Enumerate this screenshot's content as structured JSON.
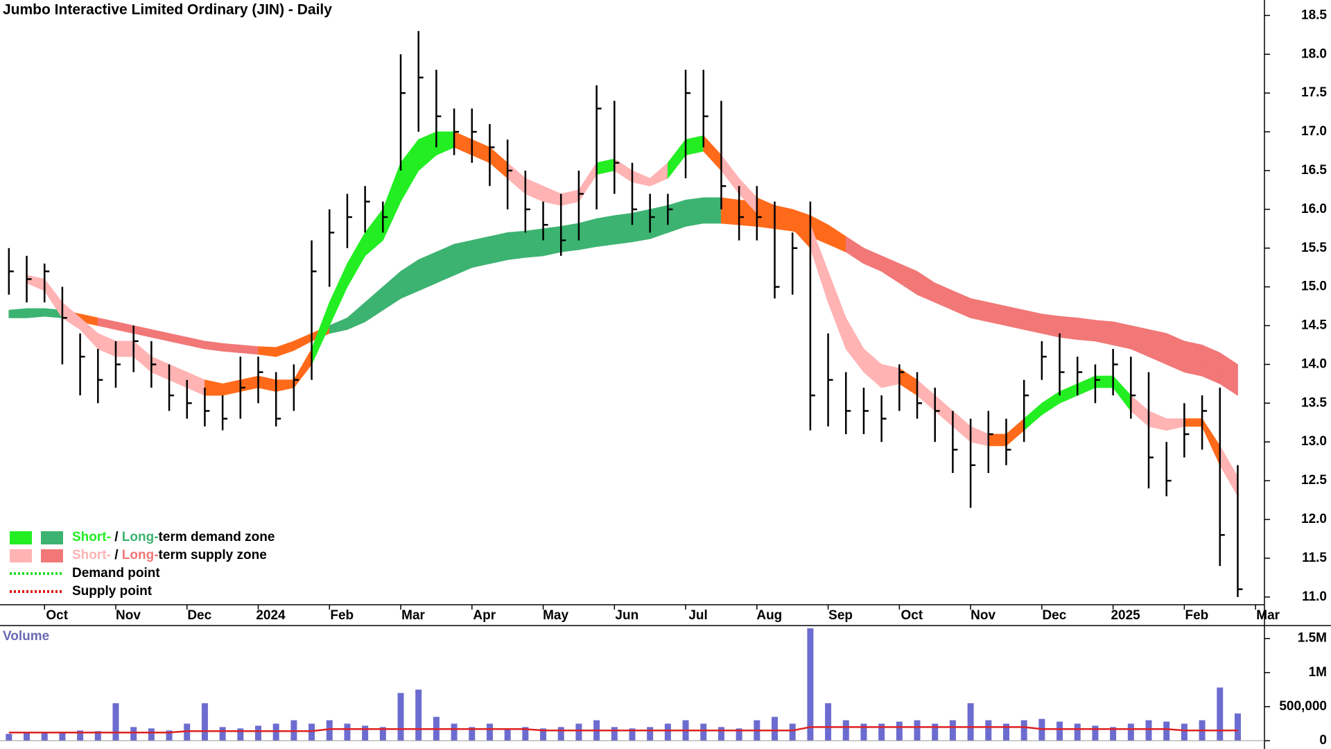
{
  "chart_data": {
    "type": "ohlc",
    "title": "Jumbo Interactive Limited Ordinary (JIN) - Daily",
    "categories": [
      null,
      null,
      "Oct",
      null,
      null,
      null,
      "Nov",
      null,
      null,
      null,
      "Dec",
      null,
      null,
      null,
      "2024",
      null,
      null,
      null,
      "Feb",
      null,
      null,
      null,
      "Mar",
      null,
      null,
      null,
      "Apr",
      null,
      null,
      null,
      "May",
      null,
      null,
      null,
      "Jun",
      null,
      null,
      null,
      "Jul",
      null,
      null,
      null,
      "Aug",
      null,
      null,
      null,
      "Sep",
      null,
      null,
      null,
      "Oct",
      null,
      null,
      null,
      "Nov",
      null,
      null,
      null,
      "Dec",
      null,
      null,
      null,
      "2025",
      null,
      null,
      null,
      "Feb",
      null,
      null,
      null,
      "Mar"
    ],
    "high": [
      15.5,
      15.4,
      15.3,
      15.0,
      14.4,
      14.2,
      14.3,
      14.5,
      14.3,
      14.0,
      13.8,
      13.7,
      13.6,
      14.1,
      14.1,
      13.9,
      14.0,
      15.6,
      16.0,
      16.2,
      16.3,
      16.1,
      18.0,
      18.3,
      17.8,
      17.3,
      17.3,
      17.1,
      16.9,
      16.5,
      16.1,
      16.2,
      16.5,
      17.6,
      17.4,
      16.6,
      16.2,
      16.2,
      17.8,
      17.8,
      17.4,
      16.3,
      16.3,
      16.1,
      15.7,
      16.1,
      14.4,
      13.9,
      13.7,
      13.6,
      14.0,
      13.9,
      13.7,
      13.4,
      13.3,
      13.4,
      13.3,
      13.8,
      14.3,
      14.4,
      14.1,
      14.0,
      14.2,
      14.1,
      13.9,
      13.0,
      13.5,
      13.6,
      13.7,
      12.7,
      null
    ],
    "low": [
      14.9,
      14.8,
      14.8,
      14.0,
      13.6,
      13.5,
      13.7,
      13.9,
      13.7,
      13.4,
      13.3,
      13.2,
      13.15,
      13.3,
      13.5,
      13.2,
      13.4,
      13.8,
      15.0,
      15.5,
      15.7,
      15.7,
      16.5,
      17.0,
      16.8,
      16.7,
      16.6,
      16.3,
      16.0,
      15.7,
      15.6,
      15.4,
      15.6,
      16.0,
      16.2,
      15.8,
      15.7,
      15.8,
      16.4,
      16.8,
      16.0,
      15.6,
      15.6,
      14.85,
      14.9,
      13.15,
      13.2,
      13.1,
      13.1,
      13.0,
      13.4,
      13.3,
      13.0,
      12.6,
      12.15,
      12.6,
      12.7,
      13.0,
      13.8,
      13.6,
      13.6,
      13.5,
      13.6,
      13.3,
      12.4,
      12.3,
      12.8,
      12.9,
      11.4,
      11.0,
      null
    ],
    "close": [
      15.2,
      15.1,
      15.2,
      14.6,
      14.1,
      13.8,
      14.0,
      14.3,
      14.0,
      13.6,
      13.5,
      13.4,
      13.3,
      13.7,
      13.9,
      13.3,
      13.8,
      15.2,
      15.7,
      15.9,
      16.1,
      15.9,
      17.5,
      17.7,
      17.2,
      17.0,
      17.0,
      16.8,
      16.5,
      16.0,
      15.8,
      15.6,
      16.2,
      17.3,
      16.6,
      16.0,
      15.9,
      16.0,
      17.5,
      17.2,
      16.3,
      15.9,
      15.9,
      15.0,
      15.5,
      13.6,
      13.8,
      13.4,
      13.4,
      13.3,
      13.9,
      13.5,
      13.4,
      12.9,
      12.7,
      13.1,
      12.9,
      13.6,
      14.1,
      13.9,
      13.9,
      13.8,
      14.0,
      13.6,
      12.8,
      12.5,
      13.1,
      13.4,
      11.8,
      11.1,
      null
    ],
    "color": "#000000",
    "ylim": [
      10.9,
      18.7
    ],
    "yticks": [
      {
        "value": 11,
        "label": "11.0"
      },
      11.5,
      {
        "value": 12,
        "label": "12.0"
      },
      12.5,
      {
        "value": 13,
        "label": "13.0"
      },
      13.5,
      {
        "value": 14,
        "label": "14.0"
      },
      14.5,
      {
        "value": 15,
        "label": "15.0"
      },
      15.5,
      {
        "value": 16,
        "label": "16.0"
      },
      16.5,
      {
        "value": 17,
        "label": "17.0"
      },
      17.5,
      {
        "value": 18,
        "label": "18.0"
      },
      18.5
    ],
    "short_zone": {
      "upper": [
        null,
        15.15,
        15.1,
        14.8,
        14.6,
        14.4,
        14.3,
        14.3,
        14.1,
        14.0,
        13.9,
        13.8,
        13.75,
        13.8,
        13.85,
        13.8,
        13.8,
        14.2,
        14.8,
        15.3,
        15.7,
        16.0,
        16.6,
        16.9,
        17.0,
        17.0,
        16.9,
        16.8,
        16.6,
        16.4,
        16.3,
        16.2,
        16.25,
        16.6,
        16.65,
        16.5,
        16.4,
        16.6,
        16.9,
        16.95,
        16.7,
        16.4,
        16.15,
        16.05,
        15.95,
        15.8,
        15.2,
        14.6,
        14.2,
        14.0,
        13.95,
        13.8,
        13.6,
        13.4,
        13.2,
        13.1,
        13.1,
        13.3,
        13.5,
        13.65,
        13.75,
        13.85,
        13.85,
        13.6,
        13.4,
        13.3,
        13.3,
        13.3,
        12.95,
        12.55,
        null
      ],
      "lower": [
        null,
        15.05,
        14.95,
        14.6,
        14.45,
        14.2,
        14.1,
        14.1,
        13.9,
        13.8,
        13.7,
        13.6,
        13.6,
        13.65,
        13.7,
        13.65,
        13.7,
        14.0,
        14.5,
        15.0,
        15.4,
        15.6,
        16.1,
        16.5,
        16.7,
        16.8,
        16.7,
        16.6,
        16.4,
        16.2,
        16.1,
        16.05,
        16.1,
        16.45,
        16.5,
        16.35,
        16.3,
        16.4,
        16.7,
        16.75,
        16.5,
        16.2,
        15.95,
        15.85,
        15.75,
        15.5,
        14.8,
        14.2,
        13.9,
        13.7,
        13.75,
        13.6,
        13.4,
        13.2,
        13.0,
        12.95,
        12.95,
        13.15,
        13.35,
        13.5,
        13.6,
        13.7,
        13.7,
        13.4,
        13.2,
        13.15,
        13.2,
        13.2,
        12.7,
        12.3,
        null
      ],
      "colors": [
        null,
        "#ffb3b3",
        "#ffb3b3",
        "#ffb3b3",
        "#ffb3b3",
        "#ffb3b3",
        "#ffb3b3",
        "#ffb3b3",
        "#ffb3b3",
        "#ffb3b3",
        "#ffb3b3",
        "#ff6a1a",
        "#ff6a1a",
        "#ff6a1a",
        "#ff6a1a",
        "#ff6a1a",
        "#ff6a1a",
        "#22ee22",
        "#22ee22",
        "#22ee22",
        "#22ee22",
        "#22ee22",
        "#22ee22",
        "#22ee22",
        "#22ee22",
        "#ff6a1a",
        "#ff6a1a",
        "#ff6a1a",
        "#ffb3b3",
        "#ffb3b3",
        "#ffb3b3",
        "#ffb3b3",
        "#ffb3b3",
        "#22ee22",
        "#ffb3b3",
        "#ffb3b3",
        "#ffb3b3",
        "#22ee22",
        "#22ee22",
        "#ff6a1a",
        "#ffb3b3",
        "#ffb3b3",
        "#ff6a1a",
        "#ff6a1a",
        "#ff6a1a",
        "#ffb3b3",
        "#ffb3b3",
        "#ffb3b3",
        "#ffb3b3",
        "#ffb3b3",
        "#ff6a1a",
        "#ffb3b3",
        "#ffb3b3",
        "#ffb3b3",
        "#ffb3b3",
        "#ff6a1a",
        "#ff6a1a",
        "#22ee22",
        "#22ee22",
        "#22ee22",
        "#22ee22",
        "#22ee22",
        "#22ee22",
        "#ffb3b3",
        "#ffb3b3",
        "#ffb3b3",
        "#ff6a1a",
        "#ff6a1a",
        "#ffb3b3",
        null,
        null
      ]
    },
    "long_zone": {
      "upper": [
        14.7,
        14.72,
        14.72,
        14.7,
        14.65,
        14.6,
        14.55,
        14.5,
        14.45,
        14.4,
        14.35,
        14.3,
        14.27,
        14.25,
        14.23,
        14.22,
        14.3,
        14.4,
        14.5,
        14.6,
        14.8,
        15.0,
        15.2,
        15.35,
        15.45,
        15.55,
        15.6,
        15.65,
        15.7,
        15.72,
        15.75,
        15.78,
        15.82,
        15.88,
        15.92,
        15.95,
        16.0,
        16.05,
        16.12,
        16.15,
        16.15,
        16.12,
        16.1,
        16.05,
        16.0,
        15.92,
        15.8,
        15.65,
        15.5,
        15.4,
        15.3,
        15.2,
        15.05,
        14.95,
        14.85,
        14.8,
        14.75,
        14.7,
        14.65,
        14.62,
        14.6,
        14.57,
        14.55,
        14.5,
        14.45,
        14.4,
        14.3,
        14.25,
        14.15,
        14.0,
        null
      ],
      "lower": [
        14.6,
        14.6,
        14.62,
        14.6,
        14.55,
        14.5,
        14.45,
        14.4,
        14.35,
        14.3,
        14.25,
        14.2,
        14.17,
        14.15,
        14.13,
        14.1,
        14.18,
        14.3,
        14.4,
        14.45,
        14.55,
        14.7,
        14.85,
        14.95,
        15.05,
        15.15,
        15.25,
        15.3,
        15.35,
        15.38,
        15.4,
        15.45,
        15.48,
        15.52,
        15.55,
        15.58,
        15.62,
        15.7,
        15.78,
        15.82,
        15.82,
        15.8,
        15.78,
        15.75,
        15.72,
        15.65,
        15.55,
        15.45,
        15.3,
        15.2,
        15.05,
        14.9,
        14.8,
        14.7,
        14.6,
        14.55,
        14.5,
        14.45,
        14.4,
        14.35,
        14.32,
        14.3,
        14.25,
        14.2,
        14.1,
        14.0,
        13.9,
        13.85,
        13.75,
        13.6,
        null
      ],
      "colors": [
        "#3cb371",
        "#3cb371",
        "#3cb371",
        "#ff6a1a",
        "#ff6a1a",
        "#f27777",
        "#f27777",
        "#f27777",
        "#f27777",
        "#f27777",
        "#f27777",
        "#f27777",
        "#f27777",
        "#f27777",
        "#ff6a1a",
        "#ff6a1a",
        "#ff6a1a",
        "#ff6a1a",
        "#3cb371",
        "#3cb371",
        "#3cb371",
        "#3cb371",
        "#3cb371",
        "#3cb371",
        "#3cb371",
        "#3cb371",
        "#3cb371",
        "#3cb371",
        "#3cb371",
        "#3cb371",
        "#3cb371",
        "#3cb371",
        "#3cb371",
        "#3cb371",
        "#3cb371",
        "#3cb371",
        "#3cb371",
        "#3cb371",
        "#3cb371",
        "#3cb371",
        "#ff6a1a",
        "#ff6a1a",
        "#ff6a1a",
        "#ff6a1a",
        "#ff6a1a",
        "#ff6a1a",
        "#ff6a1a",
        "#f27777",
        "#f27777",
        "#f27777",
        "#f27777",
        "#f27777",
        "#f27777",
        "#f27777",
        "#f27777",
        "#f27777",
        "#f27777",
        "#f27777",
        "#f27777",
        "#f27777",
        "#f27777",
        "#f27777",
        "#f27777",
        "#f27777",
        "#f27777",
        "#f27777",
        "#f27777",
        "#f27777",
        "#f27777",
        null,
        null
      ]
    },
    "legend": [
      {
        "swatches": [
          "#22ee22",
          "#3cb371"
        ],
        "parts": [
          {
            "text": "Short-",
            "color": "#22ee22"
          },
          {
            "text": " / "
          },
          {
            "text": "Long-",
            "color": "#3cb371"
          },
          {
            "text": "term demand zone"
          }
        ]
      },
      {
        "swatches": [
          "#ffb3b3",
          "#f27777"
        ],
        "parts": [
          {
            "text": "Short-",
            "color": "#ffb3b3"
          },
          {
            "text": " / "
          },
          {
            "text": "Long-",
            "color": "#f27777"
          },
          {
            "text": "term supply zone"
          }
        ]
      },
      {
        "line_color": "#22dd22",
        "parts": [
          {
            "text": "Demand point"
          }
        ]
      },
      {
        "line_color": "#dd1111",
        "parts": [
          {
            "text": "Supply point"
          }
        ]
      }
    ],
    "volume": {
      "type": "bar",
      "label": "Volume",
      "color": "#6c6cd0",
      "values": [
        100000,
        120000,
        110000,
        130000,
        150000,
        140000,
        550000,
        200000,
        180000,
        150000,
        250000,
        550000,
        200000,
        180000,
        220000,
        250000,
        300000,
        250000,
        300000,
        250000,
        220000,
        200000,
        700000,
        750000,
        350000,
        250000,
        200000,
        250000,
        180000,
        200000,
        180000,
        200000,
        250000,
        300000,
        200000,
        180000,
        200000,
        250000,
        300000,
        250000,
        200000,
        180000,
        300000,
        350000,
        250000,
        1650000,
        550000,
        300000,
        250000,
        250000,
        280000,
        300000,
        250000,
        300000,
        550000,
        300000,
        250000,
        300000,
        320000,
        280000,
        250000,
        220000,
        200000,
        250000,
        300000,
        280000,
        250000,
        300000,
        780000,
        400000,
        null
      ],
      "average": {
        "color": "#dd2222",
        "values": [
          120000,
          120000,
          120000,
          120000,
          120000,
          120000,
          120000,
          120000,
          120000,
          120000,
          140000,
          140000,
          140000,
          140000,
          140000,
          140000,
          140000,
          140000,
          170000,
          170000,
          170000,
          170000,
          170000,
          170000,
          170000,
          170000,
          170000,
          170000,
          170000,
          170000,
          150000,
          150000,
          150000,
          150000,
          150000,
          150000,
          150000,
          150000,
          150000,
          150000,
          150000,
          150000,
          150000,
          150000,
          150000,
          200000,
          200000,
          200000,
          200000,
          200000,
          200000,
          200000,
          200000,
          200000,
          200000,
          200000,
          200000,
          200000,
          170000,
          170000,
          170000,
          170000,
          170000,
          170000,
          170000,
          170000,
          150000,
          150000,
          150000,
          150000,
          null
        ]
      },
      "ylim": [
        0,
        1670000
      ],
      "yticks": [
        0,
        {
          "value": 500000,
          "label": "500,000"
        },
        {
          "value": 1000000,
          "label": "1M"
        },
        {
          "value": 1500000,
          "label": "1.5M"
        }
      ]
    }
  }
}
